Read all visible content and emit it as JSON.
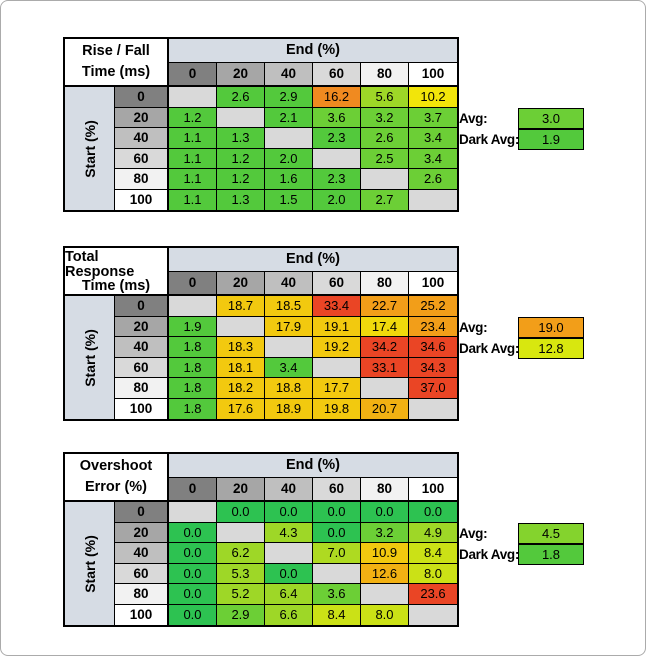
{
  "page": {
    "background": "#ffffff",
    "frame_border": "#ababab"
  },
  "palette": {
    "empty": "#d9d9d9",
    "g0": "#2dc251",
    "g1": "#53c93c",
    "g2": "#6ccf36",
    "g3": "#84d32d",
    "g4": "#9ed727",
    "g5": "#aeda21",
    "y1": "#cbe116",
    "y2": "#f2e50a",
    "y3": "#f0d90c",
    "lime": "#d8e70f",
    "gold": "#f2c90f",
    "amber": "#f2b113",
    "or1": "#f29e19",
    "or2": "#f08a20",
    "red": "#ea4525"
  },
  "header_grays": [
    "#808080",
    "#a6a6a6",
    "#bfbfbf",
    "#d9d9d9",
    "#f2f2f2",
    "#ffffff"
  ],
  "band_color": "#d6dce4",
  "chart_data": [
    {
      "type": "heatmap-table",
      "title_line1": "Rise / Fall",
      "title_line2": "Time (ms)",
      "col_axis_label": "End (%)",
      "row_axis_label": "Start (%)",
      "col_headers": [
        "0",
        "20",
        "40",
        "60",
        "80",
        "100"
      ],
      "row_headers": [
        "0",
        "20",
        "40",
        "60",
        "80",
        "100"
      ],
      "values": [
        [
          null,
          2.6,
          2.9,
          16.2,
          5.6,
          10.2
        ],
        [
          1.2,
          null,
          2.1,
          3.6,
          3.2,
          3.7
        ],
        [
          1.1,
          1.3,
          null,
          2.3,
          2.6,
          3.4
        ],
        [
          1.1,
          1.2,
          2.0,
          null,
          2.5,
          3.4
        ],
        [
          1.1,
          1.2,
          1.6,
          2.3,
          null,
          2.6
        ],
        [
          1.1,
          1.3,
          1.5,
          2.0,
          2.7,
          null
        ]
      ],
      "cell_colors": [
        [
          "empty",
          "g1",
          "g1",
          "or2",
          "g4",
          "y2"
        ],
        [
          "g1",
          "empty",
          "g1",
          "g2",
          "g2",
          "g2"
        ],
        [
          "g1",
          "g1",
          "empty",
          "g1",
          "g2",
          "g2"
        ],
        [
          "g1",
          "g1",
          "g1",
          "empty",
          "g2",
          "g2"
        ],
        [
          "g1",
          "g1",
          "g1",
          "g1",
          "empty",
          "g2"
        ],
        [
          "g1",
          "g1",
          "g1",
          "g1",
          "g2",
          "empty"
        ]
      ],
      "avg_label": "Avg:",
      "avg_value": "3.0",
      "avg_color": "g2",
      "dark_avg_label": "Dark Avg:",
      "dark_avg_value": "1.9",
      "dark_avg_color": "g1"
    },
    {
      "type": "heatmap-table",
      "title_line1": "Total Response",
      "title_line2": "Time (ms)",
      "col_axis_label": "End (%)",
      "row_axis_label": "Start (%)",
      "col_headers": [
        "0",
        "20",
        "40",
        "60",
        "80",
        "100"
      ],
      "row_headers": [
        "0",
        "20",
        "40",
        "60",
        "80",
        "100"
      ],
      "values": [
        [
          null,
          18.7,
          18.5,
          33.4,
          22.7,
          25.2
        ],
        [
          1.9,
          null,
          17.9,
          19.1,
          17.4,
          23.4
        ],
        [
          1.8,
          18.3,
          null,
          19.2,
          34.2,
          34.6
        ],
        [
          1.8,
          18.1,
          3.4,
          null,
          33.1,
          34.3
        ],
        [
          1.8,
          18.2,
          18.8,
          17.7,
          null,
          37.0
        ],
        [
          1.8,
          17.6,
          18.9,
          19.8,
          20.7,
          null
        ]
      ],
      "cell_colors": [
        [
          "empty",
          "gold",
          "gold",
          "red",
          "or1",
          "or1"
        ],
        [
          "g1",
          "empty",
          "gold",
          "gold",
          "y3",
          "or1"
        ],
        [
          "g1",
          "gold",
          "empty",
          "gold",
          "red",
          "red"
        ],
        [
          "g1",
          "gold",
          "g1",
          "empty",
          "red",
          "red"
        ],
        [
          "g1",
          "gold",
          "gold",
          "gold",
          "empty",
          "red"
        ],
        [
          "g1",
          "gold",
          "gold",
          "gold",
          "amber",
          "empty"
        ]
      ],
      "avg_label": "Avg:",
      "avg_value": "19.0",
      "avg_color": "or1",
      "dark_avg_label": "Dark Avg:",
      "dark_avg_value": "12.8",
      "dark_avg_color": "lime"
    },
    {
      "type": "heatmap-table",
      "title_line1": "Overshoot",
      "title_line2": "Error (%)",
      "col_axis_label": "End (%)",
      "row_axis_label": "Start (%)",
      "col_headers": [
        "0",
        "20",
        "40",
        "60",
        "80",
        "100"
      ],
      "row_headers": [
        "0",
        "20",
        "40",
        "60",
        "80",
        "100"
      ],
      "values": [
        [
          null,
          0.0,
          0.0,
          0.0,
          0.0,
          0.0
        ],
        [
          0.0,
          null,
          4.3,
          0.0,
          3.2,
          4.9
        ],
        [
          0.0,
          6.2,
          null,
          7.0,
          10.9,
          8.4
        ],
        [
          0.0,
          5.3,
          0.0,
          null,
          12.6,
          8.0
        ],
        [
          0.0,
          5.2,
          6.4,
          3.6,
          null,
          23.6
        ],
        [
          0.0,
          2.9,
          6.6,
          8.4,
          8.0,
          null
        ]
      ],
      "cell_colors": [
        [
          "empty",
          "g0",
          "g0",
          "g0",
          "g0",
          "g0"
        ],
        [
          "g0",
          "empty",
          "g4",
          "g0",
          "g2",
          "g4"
        ],
        [
          "g0",
          "g4",
          "empty",
          "g5",
          "gold",
          "y1"
        ],
        [
          "g0",
          "g4",
          "g0",
          "empty",
          "amber",
          "y1"
        ],
        [
          "g0",
          "g4",
          "g4",
          "g2",
          "empty",
          "red"
        ],
        [
          "g0",
          "g2",
          "g4",
          "y1",
          "y1",
          "empty"
        ]
      ],
      "avg_label": "Avg:",
      "avg_value": "4.5",
      "avg_color": "g3",
      "dark_avg_label": "Dark Avg:",
      "dark_avg_value": "1.8",
      "dark_avg_color": "g1"
    }
  ]
}
